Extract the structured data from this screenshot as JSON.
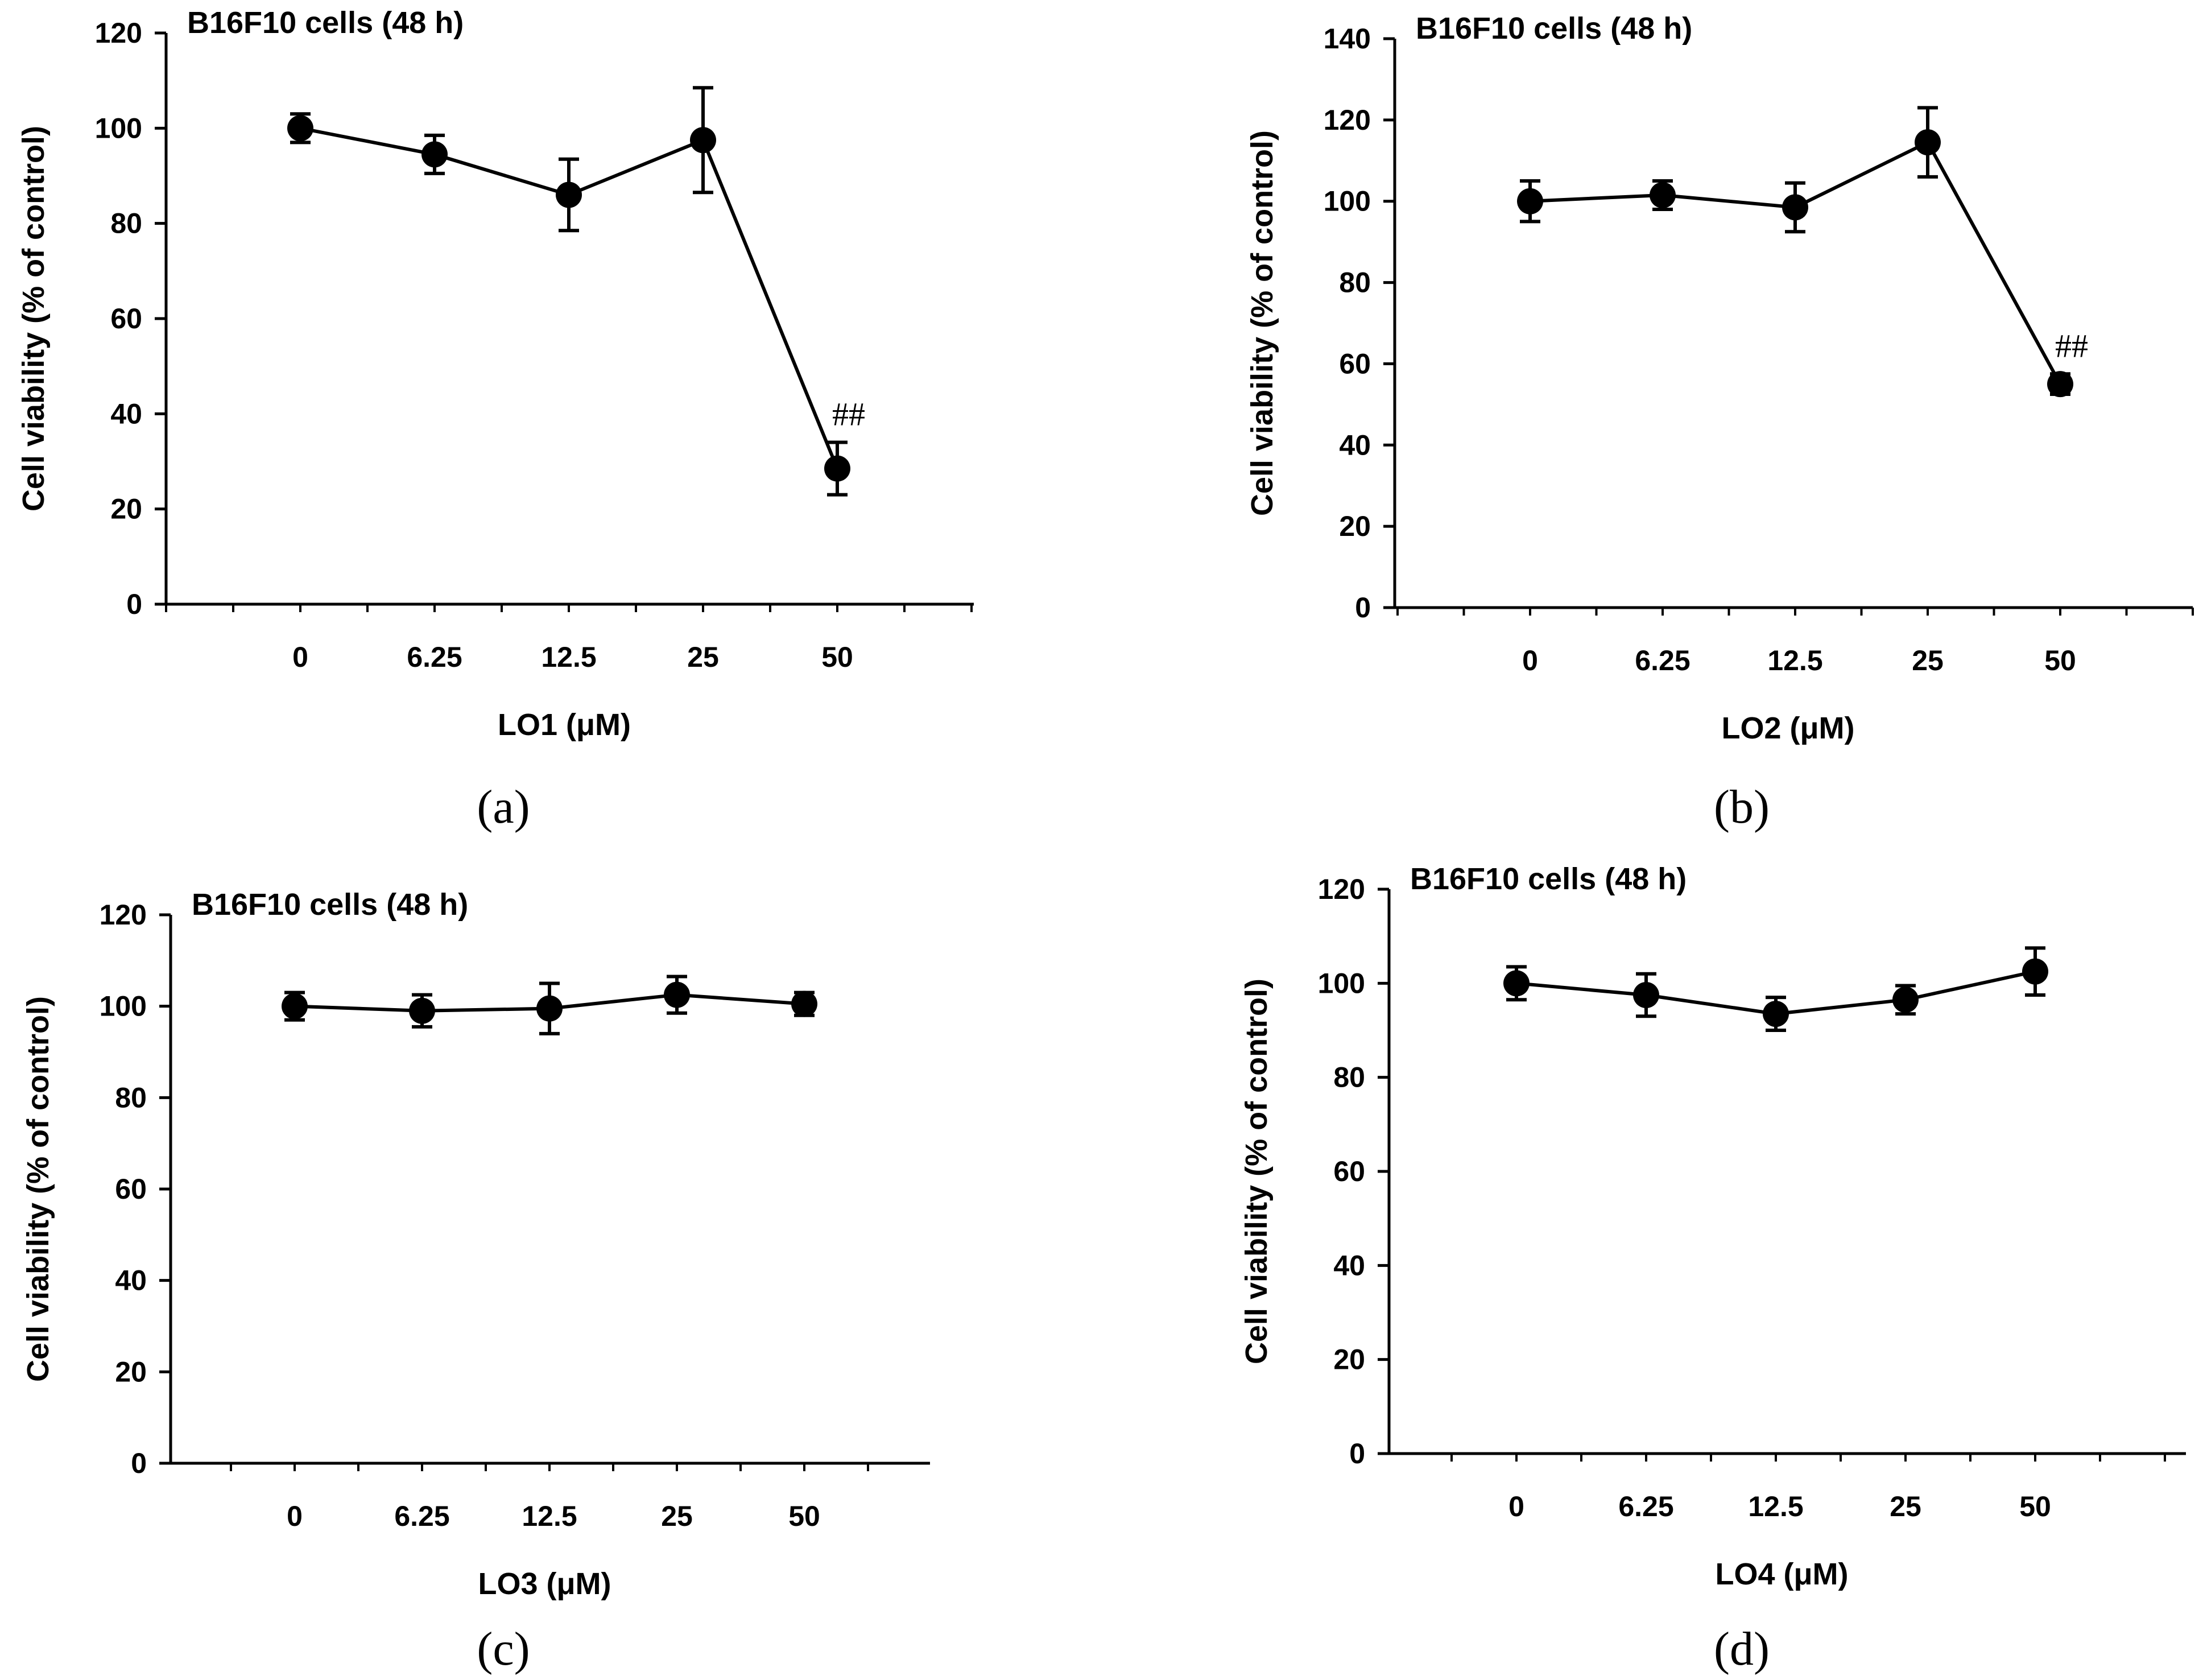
{
  "chart_data": [
    {
      "type": "line",
      "title": "B16F10 cells (48 h)",
      "xlabel": "LO1 (μM)",
      "ylabel": "Cell viability (% of control)",
      "categories": [
        "0",
        "6.25",
        "12.5",
        "25",
        "50"
      ],
      "values": [
        100,
        94.5,
        86,
        97.5,
        28.5
      ],
      "errors": [
        3,
        4,
        7.5,
        11,
        5.5
      ],
      "ylim": [
        0,
        120
      ],
      "yticks": [
        "0",
        "20",
        "40",
        "60",
        "80",
        "100",
        "120"
      ],
      "annotations": [
        {
          "index": 4,
          "text": "##"
        }
      ],
      "panel_label": "(a)"
    },
    {
      "type": "line",
      "title": "B16F10 cells (48 h)",
      "xlabel": "LO2 (μM)",
      "ylabel": "Cell viability (% of control)",
      "categories": [
        "0",
        "6.25",
        "12.5",
        "25",
        "50"
      ],
      "values": [
        100,
        101.5,
        98.5,
        114.5,
        55
      ],
      "errors": [
        5,
        3.5,
        6,
        8.5,
        2.5
      ],
      "ylim": [
        0,
        140
      ],
      "yticks": [
        "0",
        "20",
        "40",
        "60",
        "80",
        "100",
        "120",
        "140"
      ],
      "annotations": [
        {
          "index": 4,
          "text": "##"
        }
      ],
      "panel_label": "(b)"
    },
    {
      "type": "line",
      "title": "B16F10 cells (48 h)",
      "xlabel": "LO3 (μM)",
      "ylabel": "Cell viability (% of control)",
      "categories": [
        "0",
        "6.25",
        "12.5",
        "25",
        "50"
      ],
      "values": [
        100,
        99,
        99.5,
        102.5,
        100.5
      ],
      "errors": [
        3,
        3.5,
        5.5,
        4,
        2.5
      ],
      "ylim": [
        0,
        120
      ],
      "yticks": [
        "0",
        "20",
        "40",
        "60",
        "80",
        "100",
        "120"
      ],
      "annotations": [],
      "panel_label": "(c)"
    },
    {
      "type": "line",
      "title": "B16F10 cells (48 h)",
      "xlabel": "LO4 (μM)",
      "ylabel": "Cell viability (% of control)",
      "categories": [
        "0",
        "6.25",
        "12.5",
        "25",
        "50"
      ],
      "values": [
        100,
        97.5,
        93.5,
        96.5,
        102.5
      ],
      "errors": [
        3.5,
        4.5,
        3.5,
        3,
        5
      ],
      "ylim": [
        0,
        120
      ],
      "yticks": [
        "0",
        "20",
        "40",
        "60",
        "80",
        "100",
        "120"
      ],
      "annotations": [],
      "panel_label": "(d)"
    }
  ]
}
